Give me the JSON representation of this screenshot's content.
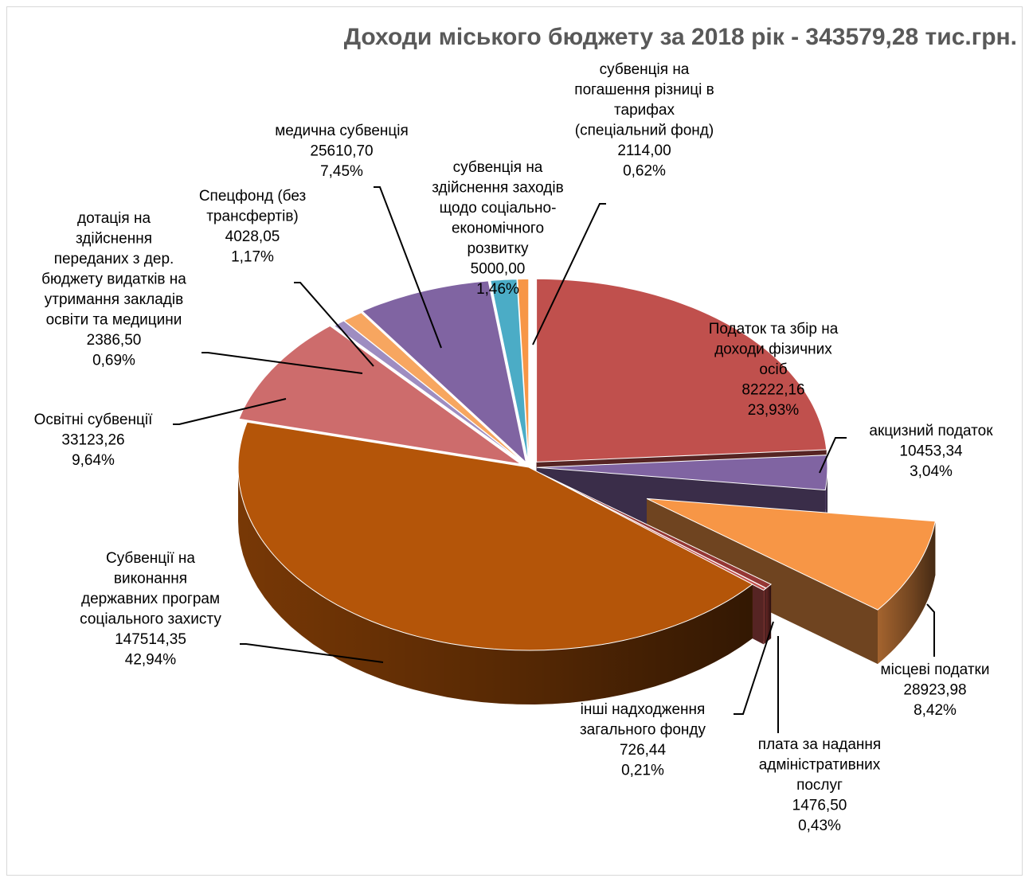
{
  "chart_data": {
    "type": "pie",
    "title": "Доходи міського бюджету  за 2018 рік - 343579,28  тис.грн.",
    "total": 343579.28,
    "slices": [
      {
        "label": [
          "Податок та збір на",
          "доходи фізичних",
          "осіб"
        ],
        "value_text": "82222,16",
        "percent_text": "23,93%",
        "value": 82222.16,
        "percent": 23.93,
        "color": "#c0504d"
      },
      {
        "label": [
          "акцизний податок"
        ],
        "value_text": "10453,34",
        "percent_text": "3,04%",
        "value": 10453.34,
        "percent": 3.04,
        "color": "#8064a2"
      },
      {
        "label": [
          "місцеві податки"
        ],
        "value_text": "28923,98",
        "percent_text": "8,42%",
        "value": 28923.98,
        "percent": 8.42,
        "color": "#f79646"
      },
      {
        "label": [
          "плата за надання",
          "адміністративних",
          "послуг"
        ],
        "value_text": "1476,50",
        "percent_text": "0,43%",
        "value": 1476.5,
        "percent": 0.43,
        "color": "#953735"
      },
      {
        "label": [
          "інші надходження",
          "загального фонду"
        ],
        "value_text": "726,44",
        "percent_text": "0,21%",
        "value": 726.44,
        "percent": 0.21,
        "color": "#c0504d"
      },
      {
        "label": [
          "Субвенції на",
          "виконання",
          "державних програм",
          "соціального захисту"
        ],
        "value_text": "147514,35",
        "percent_text": "42,94%",
        "value": 147514.35,
        "percent": 42.94,
        "color": "#b45509"
      },
      {
        "label": [
          "Освітні субвенції"
        ],
        "value_text": "33123,26",
        "percent_text": "9,64%",
        "value": 33123.26,
        "percent": 9.64,
        "color": "#cd6c6c"
      },
      {
        "label": [
          "дотація на",
          "здійснення",
          "переданих з дер.",
          "бюджету видатків на",
          "утримання закладів",
          "освіти та медицини"
        ],
        "value_text": "2386,50",
        "percent_text": "0,69%",
        "value": 2386.5,
        "percent": 0.69,
        "color": "#9e8dc1"
      },
      {
        "label": [
          "Спецфонд (без",
          "трансфертів)"
        ],
        "value_text": "4028,05",
        "percent_text": "1,17%",
        "value": 4028.05,
        "percent": 1.17,
        "color": "#f7a660"
      },
      {
        "label": [
          "медична субвенція"
        ],
        "value_text": "25610,70",
        "percent_text": "7,45%",
        "value": 25610.7,
        "percent": 7.45,
        "color": "#8064a2"
      },
      {
        "label": [
          "субвенція на",
          "здійснення заходів",
          "щодо соціально-",
          "економічного",
          "розвитку"
        ],
        "value_text": "5000,00",
        "percent_text": "1,46%",
        "value": 5000.0,
        "percent": 1.46,
        "color": "#4bacc6"
      },
      {
        "label": [
          "субвенція на",
          "погашення різниці в",
          "тарифах",
          "(спеціальний фонд)"
        ],
        "value_text": "2114,00",
        "percent_text": "0,62%",
        "value": 2114.0,
        "percent": 0.62,
        "color": "#f79646"
      }
    ]
  }
}
